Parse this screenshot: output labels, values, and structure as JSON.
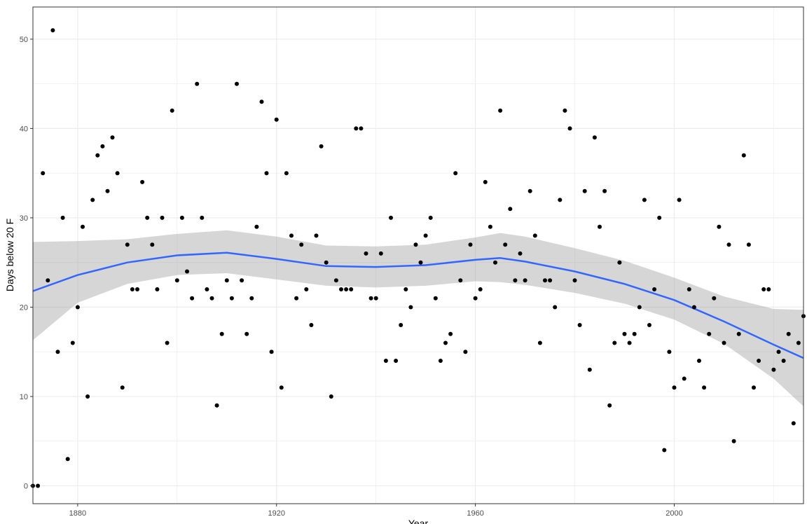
{
  "chart_data": {
    "type": "scatter",
    "title": "",
    "xlabel": "Year",
    "ylabel": "Days below 20 F",
    "xlim": [
      1871,
      2026
    ],
    "ylim": [
      -2,
      53.6
    ],
    "x_ticks": [
      1880,
      1920,
      1960,
      2000
    ],
    "y_ticks": [
      0,
      10,
      20,
      30,
      40,
      50
    ],
    "grid": true,
    "colors": {
      "points": "#000000",
      "smooth_line": "#3366FF",
      "confidence_band": "#999999",
      "grid": "#ebebeb",
      "panel_border": "#333333"
    },
    "points": {
      "x": [
        1871,
        1872,
        1873,
        1874,
        1875,
        1876,
        1877,
        1878,
        1879,
        1880,
        1881,
        1882,
        1883,
        1884,
        1885,
        1886,
        1887,
        1888,
        1889,
        1890,
        1891,
        1892,
        1893,
        1894,
        1895,
        1896,
        1897,
        1898,
        1899,
        1900,
        1901,
        1902,
        1903,
        1904,
        1905,
        1906,
        1907,
        1908,
        1909,
        1910,
        1911,
        1912,
        1913,
        1914,
        1915,
        1916,
        1917,
        1918,
        1919,
        1920,
        1921,
        1922,
        1923,
        1924,
        1925,
        1926,
        1927,
        1928,
        1929,
        1930,
        1931,
        1932,
        1933,
        1934,
        1935,
        1936,
        1937,
        1938,
        1939,
        1940,
        1941,
        1942,
        1943,
        1944,
        1945,
        1946,
        1947,
        1948,
        1949,
        1950,
        1951,
        1952,
        1953,
        1954,
        1955,
        1956,
        1957,
        1958,
        1959,
        1960,
        1961,
        1962,
        1963,
        1964,
        1965,
        1966,
        1967,
        1968,
        1969,
        1970,
        1971,
        1972,
        1973,
        1974,
        1975,
        1976,
        1977,
        1978,
        1979,
        1980,
        1981,
        1982,
        1983,
        1984,
        1985,
        1986,
        1987,
        1988,
        1989,
        1990,
        1991,
        1992,
        1993,
        1994,
        1995,
        1996,
        1997,
        1998,
        1999,
        2000,
        2001,
        2002,
        2003,
        2004,
        2005,
        2006,
        2007,
        2008,
        2009,
        2010,
        2011,
        2012,
        2013,
        2014,
        2015,
        2016,
        2017,
        2018,
        2019,
        2020,
        2021,
        2022,
        2023,
        2024,
        2025,
        2026
      ],
      "y": [
        0,
        0,
        35,
        23,
        51,
        15,
        30,
        3,
        16,
        20,
        29,
        10,
        32,
        37,
        38,
        33,
        39,
        35,
        11,
        27,
        22,
        22,
        34,
        30,
        27,
        22,
        30,
        16,
        42,
        23,
        30,
        24,
        21,
        45,
        30,
        22,
        21,
        9,
        17,
        23,
        21,
        45,
        23,
        17,
        21,
        29,
        43,
        35,
        15,
        41,
        11,
        35,
        28,
        21,
        27,
        22,
        18,
        28,
        38,
        25,
        10,
        23,
        22,
        22,
        22,
        40,
        40,
        26,
        21,
        21,
        26,
        14,
        30,
        14,
        18,
        22,
        20,
        27,
        25,
        28,
        30,
        21,
        14,
        16,
        17,
        35,
        23,
        15,
        27,
        21,
        22,
        34,
        29,
        25,
        42,
        27,
        31,
        23,
        26,
        23,
        33,
        28,
        16,
        23,
        23,
        20,
        32,
        42,
        40,
        23,
        18,
        33,
        13,
        39,
        29,
        33,
        9,
        16,
        25,
        17,
        16,
        17,
        20,
        32,
        18,
        22,
        30,
        4,
        15,
        11,
        32,
        12,
        22,
        20,
        14,
        11,
        17,
        21,
        29,
        16,
        27,
        5,
        17,
        37,
        27,
        11,
        14,
        22,
        22,
        13,
        15,
        14,
        17,
        7,
        16,
        19
      ]
    },
    "smooth": {
      "x": [
        1871,
        1880,
        1890,
        1900,
        1910,
        1920,
        1930,
        1940,
        1950,
        1960,
        1965,
        1970,
        1980,
        1990,
        2000,
        2010,
        2020,
        2026
      ],
      "y": [
        21.8,
        23.6,
        25.0,
        25.8,
        26.1,
        25.4,
        24.6,
        24.5,
        24.7,
        25.3,
        25.5,
        25.1,
        24.0,
        22.6,
        20.8,
        18.4,
        15.8,
        14.3
      ],
      "lower": [
        16.3,
        20.5,
        22.6,
        23.6,
        23.8,
        23.1,
        22.4,
        22.2,
        22.4,
        22.9,
        22.8,
        22.5,
        21.6,
        20.4,
        18.6,
        15.9,
        12.0,
        8.9
      ],
      "upper": [
        27.3,
        27.4,
        27.6,
        28.2,
        28.6,
        27.9,
        26.9,
        26.8,
        27.0,
        27.8,
        28.3,
        27.9,
        26.6,
        25.2,
        23.3,
        21.2,
        19.8,
        19.7
      ]
    }
  }
}
